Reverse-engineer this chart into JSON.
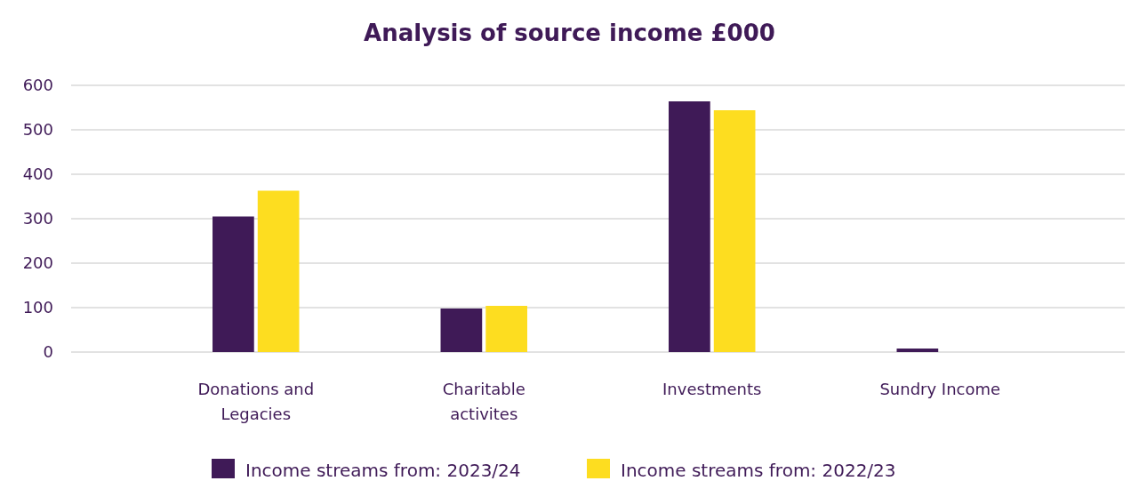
{
  "chart_data": {
    "type": "bar",
    "title": "Analysis of source income £000",
    "categories": [
      "Donations and Legacies",
      "Charitable activites",
      "Investments",
      "Sundry Income"
    ],
    "series": [
      {
        "name": "Income streams from: 2023/24",
        "color": "#3f1a57",
        "values": [
          305,
          98,
          564,
          8
        ]
      },
      {
        "name": "Income streams from: 2022/23",
        "color": "#fddd20",
        "values": [
          363,
          104,
          544,
          0
        ]
      }
    ],
    "ylim": [
      0,
      600
    ],
    "yticks": [
      0,
      100,
      200,
      300,
      400,
      500,
      600
    ],
    "grid": "y",
    "legend": "bottom"
  }
}
